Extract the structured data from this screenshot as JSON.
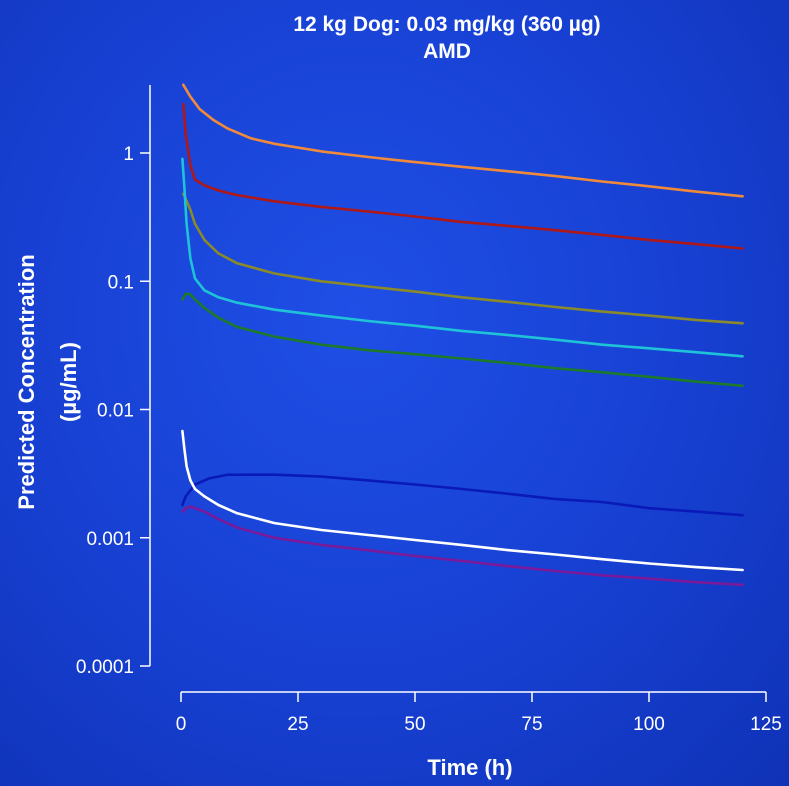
{
  "chart_data": {
    "type": "line",
    "title": "12 kg Dog: 0.03 mg/kg (360  µg)",
    "subtitle": "AMD",
    "xlabel": "Time (h)",
    "ylabel_line1": "Predicted Concentration",
    "ylabel_line2": "(µg/mL)",
    "xlim": [
      0,
      125
    ],
    "ylim": [
      0.0001,
      3.5
    ],
    "yscale": "log",
    "grid": false,
    "x_ticks": [
      0,
      25,
      50,
      75,
      100,
      125
    ],
    "x_tick_labels": [
      "0",
      "25",
      "50",
      "75",
      "100",
      "125"
    ],
    "y_ticks": [
      0.0001,
      0.001,
      0.01,
      0.1,
      1
    ],
    "y_tick_labels": [
      "0.0001",
      "0.001",
      "0.01",
      "0.1",
      "1"
    ],
    "series": [
      {
        "color": "#f08a3a",
        "x": [
          0.5,
          2,
          4,
          7,
          10,
          15,
          20,
          30,
          40,
          50,
          60,
          70,
          80,
          90,
          100,
          110,
          120
        ],
        "y": [
          3.4,
          2.75,
          2.2,
          1.8,
          1.55,
          1.3,
          1.18,
          1.03,
          0.93,
          0.85,
          0.78,
          0.72,
          0.66,
          0.6,
          0.55,
          0.5,
          0.46
        ]
      },
      {
        "color": "#b01818",
        "x": [
          0.5,
          1,
          2,
          3,
          5,
          8,
          12,
          20,
          30,
          40,
          50,
          60,
          70,
          80,
          90,
          100,
          110,
          120
        ],
        "y": [
          2.4,
          1.4,
          0.8,
          0.62,
          0.56,
          0.51,
          0.47,
          0.42,
          0.38,
          0.35,
          0.32,
          0.29,
          0.27,
          0.25,
          0.23,
          0.21,
          0.195,
          0.18
        ]
      },
      {
        "color": "#8a8a2a",
        "x": [
          0.5,
          1,
          2,
          3,
          5,
          8,
          12,
          20,
          30,
          40,
          50,
          60,
          70,
          80,
          90,
          100,
          110,
          120
        ],
        "y": [
          0.48,
          0.44,
          0.36,
          0.28,
          0.21,
          0.165,
          0.138,
          0.115,
          0.1,
          0.091,
          0.083,
          0.075,
          0.069,
          0.063,
          0.058,
          0.054,
          0.05,
          0.047
        ]
      },
      {
        "color": "#1fc3d8",
        "x": [
          0.3,
          0.7,
          1.2,
          2,
          3,
          5,
          8,
          12,
          20,
          30,
          40,
          50,
          60,
          70,
          80,
          90,
          100,
          110,
          120
        ],
        "y": [
          0.9,
          0.55,
          0.28,
          0.15,
          0.105,
          0.085,
          0.075,
          0.068,
          0.06,
          0.054,
          0.049,
          0.045,
          0.041,
          0.038,
          0.035,
          0.032,
          0.03,
          0.028,
          0.026
        ]
      },
      {
        "color": "#1c7a2a",
        "x": [
          0.3,
          1,
          2,
          3,
          5,
          8,
          12,
          20,
          30,
          40,
          50,
          60,
          70,
          80,
          90,
          100,
          110,
          120
        ],
        "y": [
          0.072,
          0.08,
          0.079,
          0.072,
          0.062,
          0.052,
          0.044,
          0.037,
          0.032,
          0.029,
          0.027,
          0.025,
          0.023,
          0.021,
          0.0195,
          0.018,
          0.0165,
          0.0153
        ]
      },
      {
        "color": "#0a1ab8",
        "x": [
          0.3,
          1,
          3,
          6,
          10,
          15,
          20,
          30,
          40,
          50,
          60,
          70,
          80,
          90,
          100,
          110,
          120
        ],
        "y": [
          0.0018,
          0.0021,
          0.0026,
          0.0029,
          0.0031,
          0.0031,
          0.0031,
          0.003,
          0.0028,
          0.0026,
          0.0024,
          0.0022,
          0.002,
          0.0019,
          0.0017,
          0.0016,
          0.0015
        ]
      },
      {
        "color": "#ffffff",
        "x": [
          0.3,
          0.7,
          1.2,
          2,
          3,
          5,
          8,
          12,
          20,
          30,
          40,
          50,
          60,
          70,
          80,
          90,
          100,
          110,
          120
        ],
        "y": [
          0.0068,
          0.005,
          0.0036,
          0.0028,
          0.0024,
          0.0021,
          0.0018,
          0.00155,
          0.0013,
          0.00115,
          0.00105,
          0.00096,
          0.00088,
          0.0008,
          0.00074,
          0.00068,
          0.00063,
          0.00059,
          0.00056
        ]
      },
      {
        "color": "#7a1a9a",
        "x": [
          0.3,
          1,
          2,
          3,
          5,
          8,
          12,
          20,
          30,
          40,
          50,
          60,
          70,
          80,
          90,
          100,
          110,
          120
        ],
        "y": [
          0.0016,
          0.0017,
          0.00175,
          0.0017,
          0.0016,
          0.0014,
          0.0012,
          0.001,
          0.00088,
          0.0008,
          0.00072,
          0.00066,
          0.0006,
          0.00055,
          0.00051,
          0.00048,
          0.00045,
          0.00043
        ]
      }
    ]
  }
}
